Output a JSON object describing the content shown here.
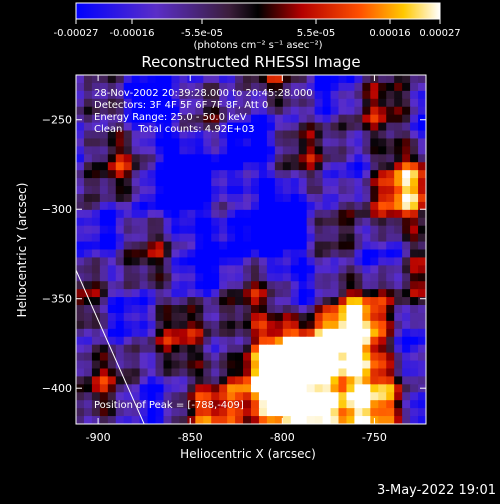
{
  "chart_data": {
    "type": "heatmap",
    "title": "Reconstructed RHESSI Image",
    "xlabel": "Heliocentric X (arcsec)",
    "ylabel": "Heliocentric Y (arcsec)",
    "xlim": [
      -912,
      -722
    ],
    "ylim": [
      -420,
      -225
    ],
    "x_ticks": [
      -900,
      -850,
      -800,
      -750
    ],
    "y_ticks": [
      -250,
      -300,
      -350,
      -400
    ],
    "x_tick_labels": [
      "-900",
      "-850",
      "-800",
      "-750"
    ],
    "y_tick_labels": [
      "−250",
      "−300",
      "−350",
      "−400"
    ],
    "colorbar": {
      "range": [
        -0.00027,
        0.00027
      ],
      "tick_labels": [
        "-0.00027",
        "-0.00016",
        "-5.5e-05",
        "5.5e-05",
        "0.00016",
        "0.00027"
      ],
      "unit_label": "(photons cm⁻² s⁻¹ asec⁻²)",
      "colors": [
        "#0000ff",
        "#5a2ec8",
        "#3c1e3c",
        "#000000",
        "#b40000",
        "#ff5000",
        "#ffc800",
        "#ffffff"
      ]
    },
    "annotations": [
      "28-Nov-2002 20:39:28.000 to 20:45:28.000",
      "Detectors: 3F 4F 5F 6F 7F 8F, Att 0",
      "Energy Range: 25.0 - 50.0 keV",
      "Clean     Total counts: 4.92E+03"
    ],
    "peak_label": "Position of Peak = [-788,-409]",
    "peak": [
      -788,
      -409
    ],
    "limb_line": [
      [
        -912,
        -334
      ],
      [
        -875,
        -420
      ]
    ]
  },
  "footer": {
    "date": "3-May-2022 19:01"
  }
}
